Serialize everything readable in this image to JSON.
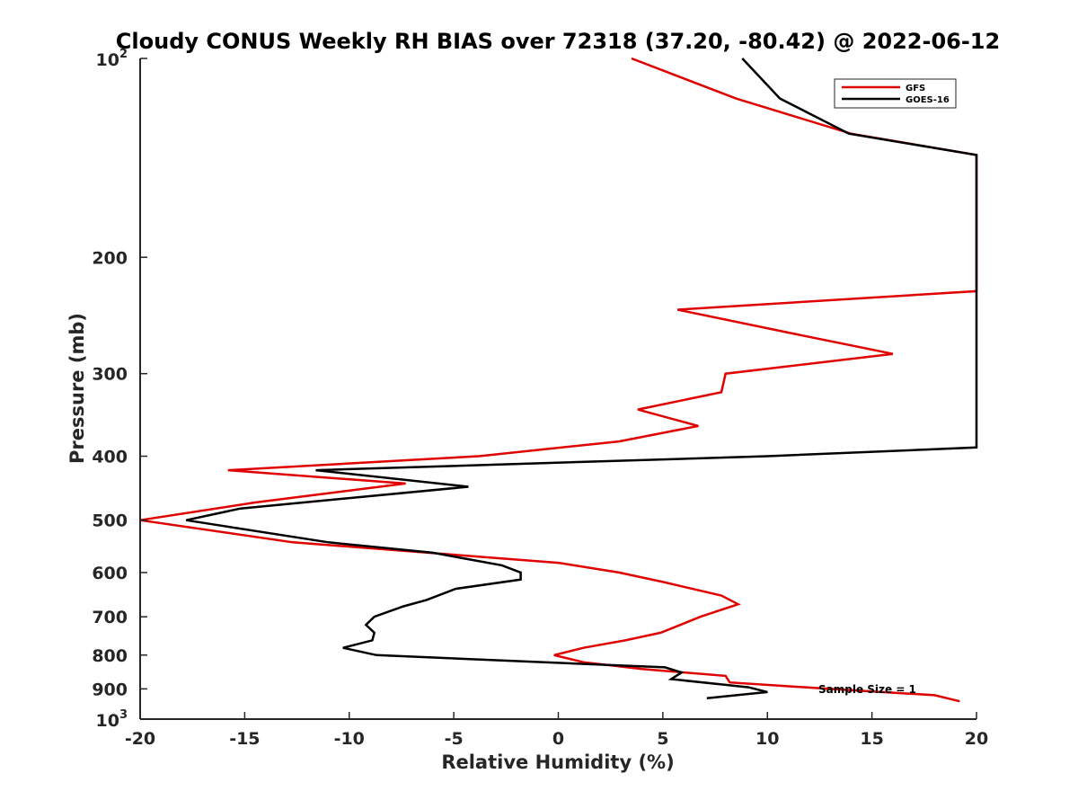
{
  "chart_data": {
    "type": "line",
    "title": "Cloudy CONUS Weekly RH BIAS over 72318 (37.20, -80.42) @ 2022-06-12",
    "xlabel": "Relative Humidity (%)",
    "ylabel": "Pressure (mb)",
    "xlim": [
      -20,
      20
    ],
    "ylim": [
      100,
      1000
    ],
    "yscale": "log",
    "y_reversed": true,
    "x_ticks": [
      "-20",
      "-15",
      "-10",
      "-5",
      "0",
      "5",
      "10",
      "15",
      "20"
    ],
    "y_ticks": [
      {
        "value": 100,
        "base": "10",
        "exp": "2"
      },
      {
        "value": 200,
        "label": "200"
      },
      {
        "value": 300,
        "label": "300"
      },
      {
        "value": 400,
        "label": "400"
      },
      {
        "value": 500,
        "label": "500"
      },
      {
        "value": 600,
        "label": "600"
      },
      {
        "value": 700,
        "label": "700"
      },
      {
        "value": 800,
        "label": "800"
      },
      {
        "value": 900,
        "label": "900"
      },
      {
        "value": 1000,
        "base": "10",
        "exp": "3"
      }
    ],
    "legend": {
      "position": "top-right"
    },
    "annotation": "Sample Size = 1",
    "series": [
      {
        "name": "GFS",
        "color": "#e00000",
        "points": [
          [
            3.5,
            100
          ],
          [
            8.5,
            115
          ],
          [
            14,
            130
          ],
          [
            20,
            140
          ],
          [
            20,
            225
          ],
          [
            5.7,
            240
          ],
          [
            11,
            260
          ],
          [
            16,
            280
          ],
          [
            8,
            300
          ],
          [
            7.8,
            320
          ],
          [
            3.8,
            340
          ],
          [
            6.7,
            360
          ],
          [
            2.9,
            380
          ],
          [
            -3.8,
            400
          ],
          [
            -15.8,
            420
          ],
          [
            -7.3,
            440
          ],
          [
            -14.5,
            470
          ],
          [
            -20,
            500
          ],
          [
            -12.7,
            540
          ],
          [
            0,
            580
          ],
          [
            2.9,
            600
          ],
          [
            5,
            620
          ],
          [
            7.8,
            650
          ],
          [
            8.6,
            670
          ],
          [
            6.8,
            700
          ],
          [
            4.9,
            740
          ],
          [
            3.2,
            760
          ],
          [
            1.2,
            780
          ],
          [
            -0.2,
            800
          ],
          [
            1.2,
            820
          ],
          [
            4,
            840
          ],
          [
            8,
            860
          ],
          [
            8.2,
            880
          ],
          [
            13,
            900
          ],
          [
            18,
            920
          ],
          [
            19.2,
            940
          ]
        ]
      },
      {
        "name": "GOES-16",
        "color": "#000000",
        "points": [
          [
            8.8,
            100
          ],
          [
            10.6,
            115
          ],
          [
            13.9,
            130
          ],
          [
            20,
            140
          ],
          [
            20,
            388
          ],
          [
            10,
            400
          ],
          [
            -11.6,
            420
          ],
          [
            -4.3,
            445
          ],
          [
            -15.2,
            480
          ],
          [
            -17.8,
            500
          ],
          [
            -11,
            540
          ],
          [
            -6,
            560
          ],
          [
            -2.7,
            585
          ],
          [
            -1.8,
            600
          ],
          [
            -1.8,
            615
          ],
          [
            -4.9,
            635
          ],
          [
            -6.3,
            660
          ],
          [
            -7.4,
            675
          ],
          [
            -8.8,
            700
          ],
          [
            -9.2,
            720
          ],
          [
            -8.8,
            740
          ],
          [
            -8.9,
            760
          ],
          [
            -10.3,
            780
          ],
          [
            -8.7,
            800
          ],
          [
            5.1,
            835
          ],
          [
            5.9,
            850
          ],
          [
            5.4,
            870
          ],
          [
            9.1,
            895
          ],
          [
            10,
            910
          ],
          [
            7.1,
            930
          ]
        ]
      }
    ]
  },
  "legend": {
    "gfs_label": "GFS",
    "goes_label": "GOES-16"
  },
  "colors": {
    "gfs": "#e00000",
    "goes": "#000000",
    "axis": "#262626"
  }
}
